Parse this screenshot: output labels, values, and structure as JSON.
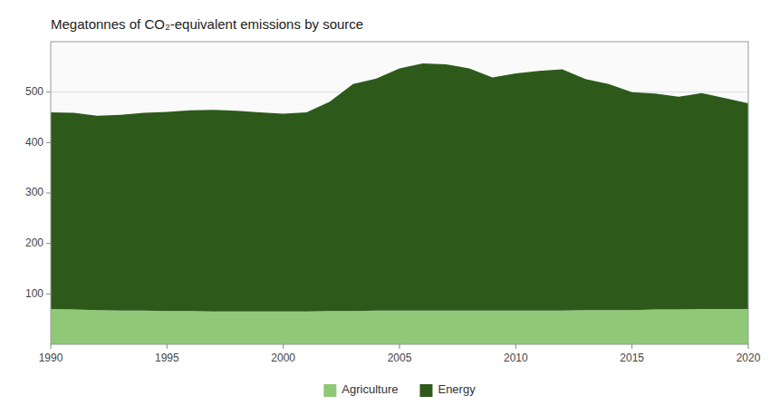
{
  "chart_data": {
    "type": "area",
    "stacked": true,
    "title": "Megatonnes of CO₂-equivalent emissions by source",
    "x": [
      1990,
      1991,
      1992,
      1993,
      1994,
      1995,
      1996,
      1997,
      1998,
      1999,
      2000,
      2001,
      2002,
      2003,
      2004,
      2005,
      2006,
      2007,
      2008,
      2009,
      2010,
      2011,
      2012,
      2013,
      2014,
      2015,
      2016,
      2017,
      2018,
      2019,
      2020
    ],
    "series": [
      {
        "name": "Agriculture",
        "color": "#90c878",
        "values": [
          70,
          69,
          68,
          67,
          67,
          66,
          66,
          65,
          65,
          65,
          65,
          65,
          66,
          66,
          67,
          67,
          67,
          67,
          67,
          67,
          67,
          67,
          67,
          68,
          68,
          68,
          69,
          69,
          70,
          70,
          70
        ]
      },
      {
        "name": "Energy",
        "color": "#2d5a1b",
        "values": [
          390,
          390,
          385,
          388,
          392,
          395,
          398,
          400,
          398,
          395,
          392,
          395,
          415,
          450,
          460,
          480,
          490,
          488,
          480,
          462,
          470,
          475,
          478,
          458,
          448,
          432,
          428,
          422,
          428,
          418,
          408
        ]
      }
    ],
    "xlim": [
      1990,
      2020
    ],
    "xticks": [
      1990,
      1995,
      2000,
      2005,
      2010,
      2015,
      2020
    ],
    "ylim": [
      0,
      600
    ],
    "yticks": [
      100,
      200,
      300,
      400,
      500
    ],
    "grid": true,
    "legend": "bottom"
  }
}
